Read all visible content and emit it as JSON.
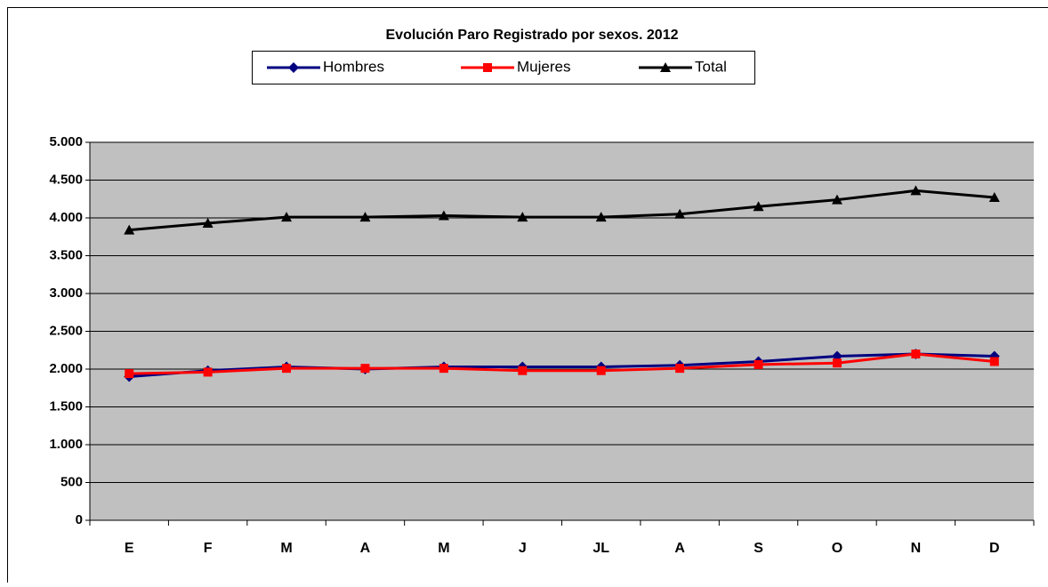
{
  "chart_data": {
    "type": "line",
    "title": "Evolución Paro Registrado por sexos. 2012",
    "categories": [
      "E",
      "F",
      "M",
      "A",
      "M",
      "J",
      "JL",
      "A",
      "S",
      "O",
      "N",
      "D"
    ],
    "series": [
      {
        "name": "Hombres",
        "color": "#000080",
        "marker": "diamond",
        "values": [
          1900,
          1980,
          2030,
          2000,
          2030,
          2030,
          2030,
          2050,
          2100,
          2170,
          2200,
          2170
        ]
      },
      {
        "name": "Mujeres",
        "color": "#ff0000",
        "marker": "square",
        "values": [
          1940,
          1960,
          2010,
          2010,
          2010,
          1980,
          1980,
          2010,
          2060,
          2080,
          2200,
          2100
        ]
      },
      {
        "name": "Total",
        "color": "#000000",
        "marker": "triangle",
        "values": [
          3840,
          3930,
          4010,
          4010,
          4030,
          4010,
          4010,
          4050,
          4150,
          4240,
          4360,
          4270
        ]
      }
    ],
    "ylim": [
      0,
      5000
    ],
    "yticks": [
      0,
      500,
      {
        "value": 1000,
        "label": "1.000"
      },
      {
        "value": 1500,
        "label": "1.500"
      },
      {
        "value": 2000,
        "label": "2.000"
      },
      {
        "value": 2500,
        "label": "2.500"
      },
      {
        "value": 3000,
        "label": "3.000"
      },
      {
        "value": 3500,
        "label": "3.500"
      },
      {
        "value": 4000,
        "label": "4.000"
      },
      {
        "value": 4500,
        "label": "4.500"
      },
      {
        "value": 5000,
        "label": "5.000"
      }
    ],
    "grid": true,
    "legend": "top",
    "plot_background": "#c0c0c0"
  }
}
